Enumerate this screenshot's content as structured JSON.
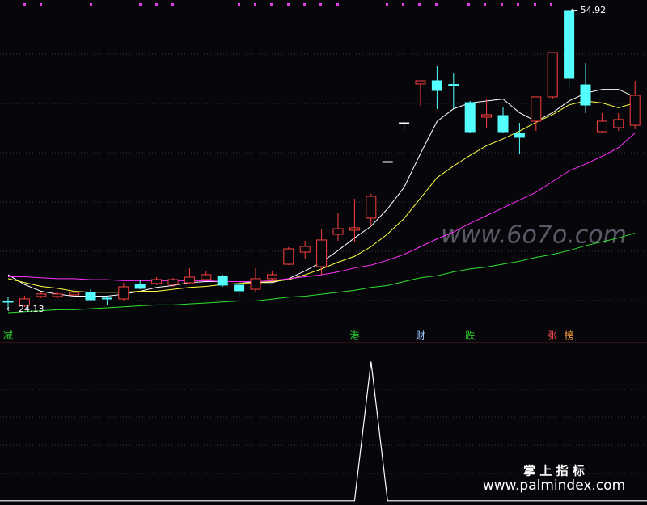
{
  "chart_data": [
    {
      "type": "candlestick",
      "open": [
        24.97,
        24.55,
        25.47,
        25.47,
        25.63,
        25.88,
        25.3,
        25.22,
        26.71,
        26.8,
        26.71,
        26.88,
        27.21,
        27.55,
        26.63,
        26.21,
        27.3,
        28.79,
        30.04,
        28.54,
        31.87,
        32.29,
        33.54,
        39.36,
        43.35,
        47.35,
        47.68,
        47.3,
        45.43,
        43.94,
        44.1,
        42.27,
        43.52,
        46.02,
        54.92,
        47.26,
        42.44,
        42.85,
        43.1
      ],
      "high": [
        25.38,
        25.55,
        25.88,
        25.96,
        26.21,
        26.21,
        25.55,
        26.88,
        27.21,
        27.46,
        27.38,
        28.38,
        28.04,
        27.71,
        26.96,
        28.38,
        28.04,
        30.54,
        31.21,
        32.45,
        34.04,
        35.53,
        36.03,
        39.36,
        43.35,
        47.68,
        49.18,
        48.5,
        45.6,
        45.85,
        44.93,
        43.35,
        46.02,
        50.59,
        54.92,
        49.51,
        44.35,
        44.35,
        47.68
      ],
      "low": [
        24.13,
        24.38,
        25.3,
        25.3,
        25.47,
        24.97,
        24.55,
        25.05,
        26.21,
        26.63,
        26.46,
        26.71,
        27.05,
        26.46,
        25.47,
        25.88,
        27.05,
        28.71,
        29.38,
        27.71,
        31.21,
        31.04,
        32.7,
        39.36,
        42.52,
        45.1,
        44.77,
        44.8,
        42.27,
        42.85,
        42.27,
        40.19,
        42.52,
        45.85,
        46.85,
        44.35,
        42.27,
        42.52,
        42.69
      ],
      "close": [
        24.88,
        25.22,
        25.72,
        25.72,
        25.88,
        25.13,
        25.22,
        26.46,
        26.3,
        27.21,
        27.21,
        27.46,
        27.71,
        26.63,
        26.05,
        27.3,
        27.71,
        30.37,
        30.62,
        31.29,
        32.45,
        32.54,
        35.78,
        39.36,
        43.35,
        47.68,
        46.68,
        47.2,
        42.44,
        44.19,
        42.44,
        41.86,
        46.02,
        50.59,
        47.93,
        45.18,
        43.52,
        43.69,
        46.18
      ],
      "up_color": "#ff4040",
      "down_color": "#54ffff",
      "flat_color": "#ffffff",
      "lines": [
        {
          "color": "#ffffff",
          "values": [
            27.7,
            26.7,
            26.0,
            25.7,
            25.5,
            25.5,
            25.5,
            25.7,
            26.0,
            26.4,
            26.6,
            26.9,
            27.0,
            27.0,
            27.0,
            26.9,
            26.9,
            27.3,
            28.1,
            29.0,
            30.2,
            31.5,
            32.7,
            34.5,
            36.7,
            40.2,
            43.5,
            44.8,
            45.4,
            45.6,
            45.8,
            44.4,
            43.5,
            44.4,
            45.6,
            46.4,
            46.8,
            46.8,
            46.0
          ]
        },
        {
          "color": "#ffff40",
          "values": [
            27.3,
            26.9,
            26.5,
            26.3,
            26.0,
            25.9,
            25.9,
            25.9,
            26.0,
            26.0,
            26.2,
            26.4,
            26.5,
            26.7,
            26.8,
            26.9,
            27.0,
            27.2,
            27.7,
            28.3,
            29.0,
            29.6,
            30.6,
            31.9,
            33.5,
            35.6,
            37.7,
            38.9,
            40.0,
            41.0,
            41.7,
            42.5,
            43.4,
            44.2,
            45.2,
            45.6,
            45.4,
            44.9,
            45.4
          ]
        },
        {
          "color": "#ff30ff",
          "values": [
            27.5,
            27.5,
            27.4,
            27.3,
            27.3,
            27.2,
            27.2,
            27.1,
            27.1,
            27.1,
            27.1,
            27.1,
            27.1,
            27.0,
            27.0,
            27.0,
            27.1,
            27.3,
            27.5,
            27.7,
            28.0,
            28.4,
            28.7,
            29.2,
            29.8,
            30.6,
            31.4,
            32.1,
            33.0,
            33.8,
            34.6,
            35.4,
            36.2,
            37.3,
            38.4,
            39.1,
            39.9,
            40.8,
            42.3
          ]
        },
        {
          "color": "#30e030",
          "values": [
            23.8,
            23.9,
            24.0,
            24.1,
            24.1,
            24.2,
            24.3,
            24.4,
            24.5,
            24.6,
            24.6,
            24.7,
            24.8,
            24.9,
            25.0,
            25.0,
            25.2,
            25.4,
            25.5,
            25.7,
            25.9,
            26.1,
            26.4,
            26.6,
            27.0,
            27.4,
            27.6,
            28.0,
            28.3,
            28.5,
            28.8,
            29.1,
            29.5,
            29.8,
            30.2,
            30.7,
            31.1,
            31.5,
            32.0
          ]
        }
      ],
      "signals": [
        "减",
        null,
        null,
        null,
        null,
        null,
        null,
        null,
        null,
        null,
        null,
        null,
        null,
        null,
        null,
        null,
        null,
        null,
        null,
        null,
        null,
        "港",
        null,
        null,
        null,
        "财",
        null,
        null,
        "跌",
        null,
        null,
        null,
        null,
        "张",
        "榜",
        null,
        null,
        null,
        null
      ],
      "signal_colors": [
        "#30d030",
        null,
        null,
        null,
        null,
        null,
        null,
        null,
        null,
        null,
        null,
        null,
        null,
        null,
        null,
        null,
        null,
        null,
        null,
        null,
        null,
        "#30d030",
        null,
        null,
        null,
        "#a0c8ff",
        null,
        null,
        "#30d030",
        null,
        null,
        null,
        null,
        "#ff5050",
        "#ffa040",
        null,
        null,
        null,
        null
      ],
      "ylim": [
        22.3,
        56.0
      ]
    },
    {
      "type": "line",
      "color": "#ffffff",
      "values": [
        0,
        0,
        0,
        0,
        0,
        0,
        0,
        0,
        0,
        0,
        0,
        0,
        0,
        0,
        0,
        0,
        0,
        0,
        0,
        0,
        0,
        0,
        1,
        0,
        0,
        0,
        0,
        0,
        0,
        0,
        0,
        0,
        0,
        0,
        0,
        0,
        0,
        0,
        0
      ],
      "ylim": [
        -0.03,
        1.13
      ]
    }
  ],
  "watermark_site": "www.6o7o.com",
  "footer_title": "掌 上 指 标",
  "footer_url": "www.palmindex.com"
}
